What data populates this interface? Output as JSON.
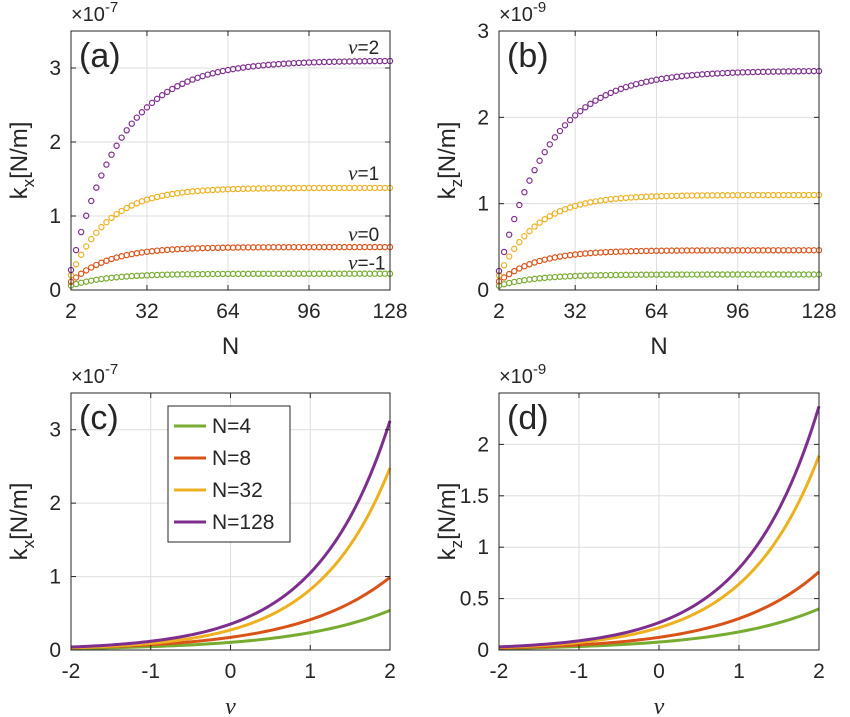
{
  "figure": {
    "colors": {
      "green": "#77AC30",
      "orange": "#D95319",
      "yellow": "#EDB120",
      "purple": "#7E2F8E",
      "grid": "#DEDEDE",
      "axis": "#262626"
    }
  },
  "chart_data": [
    {
      "id": "a",
      "type": "scatter",
      "panel_label": "(a)",
      "multiplier": "×10",
      "multiplier_exp": "-7",
      "ylabel_main": "k",
      "ylabel_sub": "x",
      "ylabel_unit": "[N/m]",
      "xlabel": "N",
      "xlim": [
        2,
        128
      ],
      "ylim": [
        0,
        3.5
      ],
      "xticks": [
        2,
        32,
        64,
        96,
        128
      ],
      "yticks": [
        0,
        1,
        2,
        3
      ],
      "grid": true,
      "x": {
        "start": 2,
        "end": 128,
        "step": 2
      },
      "series": [
        {
          "name": "ν=-1",
          "color": "green",
          "v0": 0.06,
          "vinf": 0.22,
          "tau": 15
        },
        {
          "name": "ν=0",
          "color": "orange",
          "v0": 0.11,
          "vinf": 0.58,
          "tau": 15
        },
        {
          "name": "ν=1",
          "color": "yellow",
          "v0": 0.2,
          "vinf": 1.38,
          "tau": 15
        },
        {
          "name": "ν=2",
          "color": "purple",
          "v0": 0.27,
          "vinf": 3.1,
          "tau": 20
        }
      ],
      "annotations": [
        {
          "prefix": "ν",
          "text": "=2",
          "x": 117,
          "y": 3.27
        },
        {
          "prefix": "ν",
          "text": "=1",
          "x": 117,
          "y": 1.57
        },
        {
          "prefix": "ν",
          "text": "=0",
          "x": 117,
          "y": 0.74
        },
        {
          "prefix": "ν",
          "text": "=-1",
          "x": 117,
          "y": 0.36
        }
      ]
    },
    {
      "id": "b",
      "type": "scatter",
      "panel_label": "(b)",
      "multiplier": "×10",
      "multiplier_exp": "-9",
      "ylabel_main": "k",
      "ylabel_sub": "z",
      "ylabel_unit": "[N/m]",
      "xlabel": "N",
      "xlim": [
        2,
        128
      ],
      "ylim": [
        0,
        3
      ],
      "xticks": [
        2,
        32,
        64,
        96,
        128
      ],
      "yticks": [
        0,
        1,
        2,
        3
      ],
      "grid": true,
      "x": {
        "start": 2,
        "end": 128,
        "step": 2
      },
      "series": [
        {
          "name": "ν=-1",
          "color": "green",
          "v0": 0.05,
          "vinf": 0.18,
          "tau": 15
        },
        {
          "name": "ν=0",
          "color": "orange",
          "v0": 0.1,
          "vinf": 0.46,
          "tau": 15
        },
        {
          "name": "ν=1",
          "color": "yellow",
          "v0": 0.17,
          "vinf": 1.1,
          "tau": 15
        },
        {
          "name": "ν=2",
          "color": "purple",
          "v0": 0.22,
          "vinf": 2.54,
          "tau": 20
        }
      ],
      "annotations": []
    },
    {
      "id": "c",
      "type": "line",
      "panel_label": "(c)",
      "multiplier": "×10",
      "multiplier_exp": "-7",
      "ylabel_main": "k",
      "ylabel_sub": "x",
      "ylabel_unit": "[N/m]",
      "xlabel": "ν",
      "xlim": [
        -2,
        2
      ],
      "ylim": [
        0,
        3.5
      ],
      "xticks": [
        -2,
        -1,
        0,
        1,
        2
      ],
      "yticks": [
        0,
        1,
        2,
        3
      ],
      "grid": true,
      "x": {
        "start": -2,
        "end": 2,
        "step": 0.05
      },
      "series": [
        {
          "name": "N=4",
          "color": "green",
          "y_at_m2": 0.02,
          "y_at_2": 0.54
        },
        {
          "name": "N=8",
          "color": "orange",
          "y_at_m2": 0.03,
          "y_at_2": 0.99
        },
        {
          "name": "N=32",
          "color": "yellow",
          "y_at_m2": 0.03,
          "y_at_2": 2.48
        },
        {
          "name": "N=128",
          "color": "purple",
          "y_at_m2": 0.04,
          "y_at_2": 3.12
        }
      ],
      "legend": [
        "N=4",
        "N=8",
        "N=32",
        "N=128"
      ],
      "legend_position": "top-left"
    },
    {
      "id": "d",
      "type": "line",
      "panel_label": "(d)",
      "multiplier": "×10",
      "multiplier_exp": "-9",
      "ylabel_main": "k",
      "ylabel_sub": "z",
      "ylabel_unit": "[N/m]",
      "xlabel": "ν",
      "xlim": [
        -2,
        2
      ],
      "ylim": [
        0,
        2.5
      ],
      "xticks": [
        -2,
        -1,
        0,
        1,
        2
      ],
      "yticks": [
        0,
        0.5,
        1,
        1.5,
        2
      ],
      "grid": true,
      "x": {
        "start": -2,
        "end": 2,
        "step": 0.05
      },
      "series": [
        {
          "name": "N=4",
          "color": "green",
          "y_at_m2": 0.015,
          "y_at_2": 0.4
        },
        {
          "name": "N=8",
          "color": "orange",
          "y_at_m2": 0.02,
          "y_at_2": 0.76
        },
        {
          "name": "N=32",
          "color": "yellow",
          "y_at_m2": 0.025,
          "y_at_2": 1.89
        },
        {
          "name": "N=128",
          "color": "purple",
          "y_at_m2": 0.03,
          "y_at_2": 2.37
        }
      ]
    }
  ]
}
